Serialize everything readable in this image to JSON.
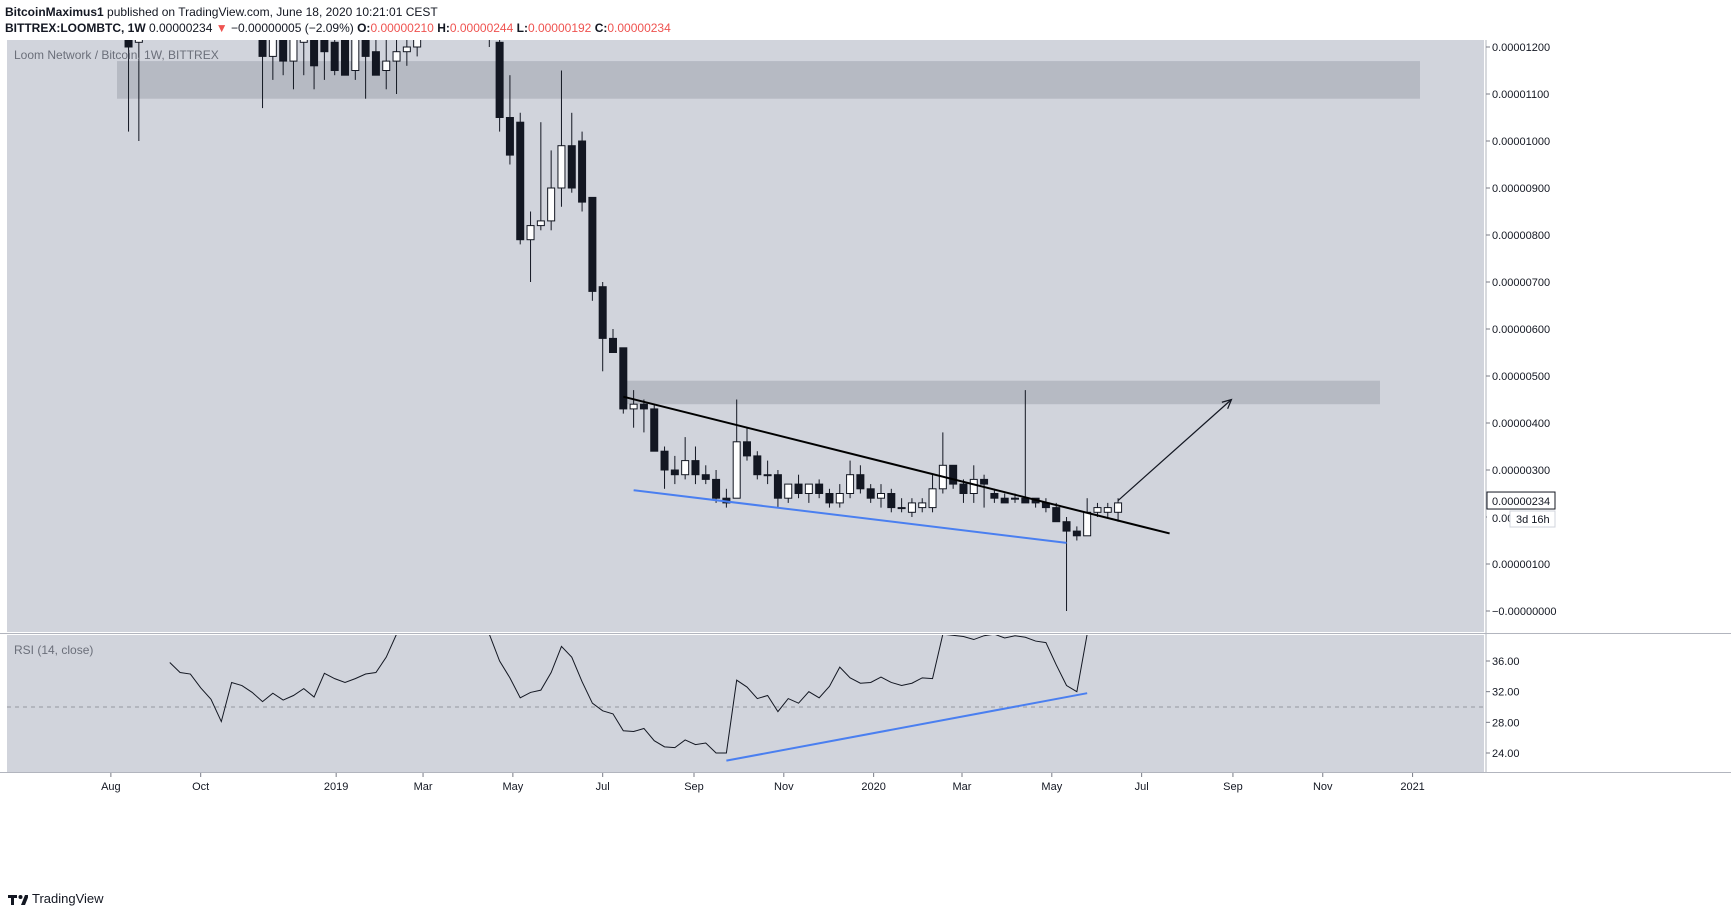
{
  "header": {
    "author": "BitcoinMaximus1",
    "published_text": "published on TradingView.com, June 18, 2020 10:21:01 CEST",
    "symbol": "BITTREX:LOOMBTC, 1W",
    "last_price": "0.00000234",
    "change_arrow": "▼",
    "change_text": "−0.00000005 (−2.09%)",
    "o_label": "O:",
    "o_value": "0.00000210",
    "h_label": "H:",
    "h_value": "0.00000244",
    "l_label": "L:",
    "l_value": "0.00000192",
    "c_label": "C:",
    "c_value": "0.00000234"
  },
  "footer": {
    "brand": "TradingView"
  },
  "colors": {
    "pane_bg": "#d1d4dc",
    "zone": "#b2b5be",
    "candle_down": "#131722",
    "candle_up": "#ffffff",
    "resistance_line": "#000000",
    "support_line": "#4a7ff0",
    "rsi_line": "#131722"
  },
  "chart_data": {
    "type": "candlestick",
    "title": "Loom Network / Bitcoin, 1W, BITTREX",
    "symbol": "LOOMBTC",
    "exchange": "BITTREX",
    "interval": "1W",
    "price_axis": {
      "ticks": [
        "0.00001200",
        "0.00001100",
        "0.00001000",
        "0.00000900",
        "0.00000800",
        "0.00000700",
        "0.00000600",
        "0.00000500",
        "0.00000400",
        "0.00000300",
        "0.00000200",
        "0.00000100",
        "−0.00000000"
      ],
      "min": -2e-07,
      "max": 1.22e-05,
      "last_price_label": "0.00000234",
      "countdown_label": "3d 16h",
      "partial_label": "0.00"
    },
    "time_axis": [
      "Aug",
      "Oct",
      "2019",
      "Mar",
      "May",
      "Jul",
      "Sep",
      "Nov",
      "2020",
      "Mar",
      "May",
      "Jul",
      "Sep",
      "Nov",
      "2021"
    ],
    "zones": [
      {
        "from": 1.09e-05,
        "to": 1.17e-05
      },
      {
        "from": 4.4e-06,
        "to": 4.9e-06
      }
    ],
    "annotations": {
      "resistance_line": {
        "from": [
          "2019-07-15",
          4.56e-06
        ],
        "to": [
          "2020-07-20",
          1.65e-06
        ]
      },
      "support_line": {
        "from": [
          "2019-07-22",
          2.57e-06
        ],
        "to": [
          "2020-05-11",
          1.45e-06
        ]
      },
      "target_arrow": {
        "from": [
          "2020-06-15",
          2.35e-06
        ],
        "to": [
          "2020-08-31",
          4.5e-06
        ]
      }
    },
    "candles": [
      {
        "x": "2018-08-13",
        "o": 1.22e-05,
        "h": 1.27e-05,
        "l": 1.02e-05,
        "c": 1.2e-05
      },
      {
        "x": "2018-08-20",
        "o": 1.21e-05,
        "h": 1.26e-05,
        "l": 1e-05,
        "c": 1.23e-05
      },
      {
        "x": "2018-11-12",
        "o": 1.22e-05,
        "h": 1.28e-05,
        "l": 1.07e-05,
        "c": 1.18e-05
      },
      {
        "x": "2018-11-19",
        "o": 1.18e-05,
        "h": 1.27e-05,
        "l": 1.13e-05,
        "c": 1.25e-05
      },
      {
        "x": "2018-11-26",
        "o": 1.24e-05,
        "h": 1.29e-05,
        "l": 1.14e-05,
        "c": 1.17e-05
      },
      {
        "x": "2018-12-03",
        "o": 1.17e-05,
        "h": 1.26e-05,
        "l": 1.11e-05,
        "c": 1.22e-05
      },
      {
        "x": "2018-12-10",
        "o": 1.21e-05,
        "h": 1.25e-05,
        "l": 1.14e-05,
        "c": 1.23e-05
      },
      {
        "x": "2018-12-17",
        "o": 1.23e-05,
        "h": 1.28e-05,
        "l": 1.11e-05,
        "c": 1.16e-05
      },
      {
        "x": "2018-12-24",
        "o": 1.24e-05,
        "h": 1.27e-05,
        "l": 1.13e-05,
        "c": 1.19e-05
      },
      {
        "x": "2018-12-31",
        "o": 1.21e-05,
        "h": 1.25e-05,
        "l": 1.14e-05,
        "c": 1.15e-05
      },
      {
        "x": "2019-01-07",
        "o": 1.22e-05,
        "h": 1.26e-05,
        "l": 1.15e-05,
        "c": 1.14e-05
      },
      {
        "x": "2019-01-14",
        "o": 1.15e-05,
        "h": 1.24e-05,
        "l": 1.13e-05,
        "c": 1.23e-05
      },
      {
        "x": "2019-01-21",
        "o": 1.23e-05,
        "h": 1.26e-05,
        "l": 1.09e-05,
        "c": 1.18e-05
      },
      {
        "x": "2019-01-28",
        "o": 1.19e-05,
        "h": 1.25e-05,
        "l": 1.14e-05,
        "c": 1.14e-05
      },
      {
        "x": "2019-02-04",
        "o": 1.15e-05,
        "h": 1.24e-05,
        "l": 1.11e-05,
        "c": 1.17e-05
      },
      {
        "x": "2019-02-11",
        "o": 1.17e-05,
        "h": 1.23e-05,
        "l": 1.1e-05,
        "c": 1.19e-05
      },
      {
        "x": "2019-02-18",
        "o": 1.19e-05,
        "h": 1.26e-05,
        "l": 1.16e-05,
        "c": 1.2e-05
      },
      {
        "x": "2019-02-25",
        "o": 1.2e-05,
        "h": 1.27e-05,
        "l": 1.18e-05,
        "c": 1.23e-05
      },
      {
        "x": "2019-04-15",
        "o": 1.24e-05,
        "h": 1.26e-05,
        "l": 1.2e-05,
        "c": 1.22e-05
      },
      {
        "x": "2019-04-22",
        "o": 1.21e-05,
        "h": 1.24e-05,
        "l": 1.02e-05,
        "c": 1.05e-05
      },
      {
        "x": "2019-04-29",
        "o": 1.05e-05,
        "h": 1.14e-05,
        "l": 9.5e-06,
        "c": 9.7e-06
      },
      {
        "x": "2019-05-06",
        "o": 1.04e-05,
        "h": 1.06e-05,
        "l": 7.8e-06,
        "c": 7.9e-06
      },
      {
        "x": "2019-05-13",
        "o": 7.9e-06,
        "h": 8.5e-06,
        "l": 7e-06,
        "c": 8.2e-06
      },
      {
        "x": "2019-05-20",
        "o": 8.2e-06,
        "h": 1.04e-05,
        "l": 8.1e-06,
        "c": 8.3e-06
      },
      {
        "x": "2019-05-27",
        "o": 8.3e-06,
        "h": 9.8e-06,
        "l": 8.1e-06,
        "c": 9e-06
      },
      {
        "x": "2019-06-03",
        "o": 9e-06,
        "h": 1.15e-05,
        "l": 8.6e-06,
        "c": 9.9e-06
      },
      {
        "x": "2019-06-10",
        "o": 9.9e-06,
        "h": 1.06e-05,
        "l": 8.9e-06,
        "c": 9e-06
      },
      {
        "x": "2019-06-17",
        "o": 1e-05,
        "h": 1.02e-05,
        "l": 8.5e-06,
        "c": 8.7e-06
      },
      {
        "x": "2019-06-24",
        "o": 8.8e-06,
        "h": 8.8e-06,
        "l": 6.6e-06,
        "c": 6.8e-06
      },
      {
        "x": "2019-07-01",
        "o": 6.9e-06,
        "h": 7e-06,
        "l": 5.1e-06,
        "c": 5.8e-06
      },
      {
        "x": "2019-07-08",
        "o": 5.8e-06,
        "h": 6e-06,
        "l": 5.5e-06,
        "c": 5.5e-06
      },
      {
        "x": "2019-07-15",
        "o": 5.6e-06,
        "h": 5.6e-06,
        "l": 4.2e-06,
        "c": 4.3e-06
      },
      {
        "x": "2019-07-22",
        "o": 4.3e-06,
        "h": 4.7e-06,
        "l": 3.9e-06,
        "c": 4.4e-06
      },
      {
        "x": "2019-07-29",
        "o": 4.4e-06,
        "h": 4.5e-06,
        "l": 3.8e-06,
        "c": 4.3e-06
      },
      {
        "x": "2019-08-05",
        "o": 4.3e-06,
        "h": 4.4e-06,
        "l": 3.4e-06,
        "c": 3.4e-06
      },
      {
        "x": "2019-08-12",
        "o": 3.4e-06,
        "h": 3.5e-06,
        "l": 2.6e-06,
        "c": 3e-06
      },
      {
        "x": "2019-08-19",
        "o": 3e-06,
        "h": 3.3e-06,
        "l": 2.7e-06,
        "c": 2.9e-06
      },
      {
        "x": "2019-08-26",
        "o": 2.9e-06,
        "h": 3.7e-06,
        "l": 2.8e-06,
        "c": 3.2e-06
      },
      {
        "x": "2019-09-02",
        "o": 3.2e-06,
        "h": 3.5e-06,
        "l": 2.7e-06,
        "c": 2.9e-06
      },
      {
        "x": "2019-09-09",
        "o": 2.9e-06,
        "h": 3.1e-06,
        "l": 2.7e-06,
        "c": 2.8e-06
      },
      {
        "x": "2019-09-16",
        "o": 2.8e-06,
        "h": 3e-06,
        "l": 2.3e-06,
        "c": 2.4e-06
      },
      {
        "x": "2019-09-23",
        "o": 2.4e-06,
        "h": 2.6e-06,
        "l": 2.2e-06,
        "c": 2.3e-06
      },
      {
        "x": "2019-09-30",
        "o": 2.4e-06,
        "h": 4.5e-06,
        "l": 2.4e-06,
        "c": 3.6e-06
      },
      {
        "x": "2019-10-07",
        "o": 3.6e-06,
        "h": 3.9e-06,
        "l": 3.2e-06,
        "c": 3.3e-06
      },
      {
        "x": "2019-10-14",
        "o": 3.3e-06,
        "h": 3.4e-06,
        "l": 2.8e-06,
        "c": 2.9e-06
      },
      {
        "x": "2019-10-21",
        "o": 2.9e-06,
        "h": 3.2e-06,
        "l": 2.7e-06,
        "c": 2.9e-06
      },
      {
        "x": "2019-10-28",
        "o": 2.9e-06,
        "h": 3e-06,
        "l": 2.2e-06,
        "c": 2.4e-06
      },
      {
        "x": "2019-11-04",
        "o": 2.4e-06,
        "h": 2.7e-06,
        "l": 2.3e-06,
        "c": 2.7e-06
      },
      {
        "x": "2019-11-11",
        "o": 2.7e-06,
        "h": 2.9e-06,
        "l": 2.4e-06,
        "c": 2.5e-06
      },
      {
        "x": "2019-11-18",
        "o": 2.5e-06,
        "h": 2.7e-06,
        "l": 2.3e-06,
        "c": 2.7e-06
      },
      {
        "x": "2019-11-25",
        "o": 2.7e-06,
        "h": 2.8e-06,
        "l": 2.4e-06,
        "c": 2.5e-06
      },
      {
        "x": "2019-12-02",
        "o": 2.5e-06,
        "h": 2.6e-06,
        "l": 2.2e-06,
        "c": 2.3e-06
      },
      {
        "x": "2019-12-09",
        "o": 2.3e-06,
        "h": 2.7e-06,
        "l": 2.2e-06,
        "c": 2.5e-06
      },
      {
        "x": "2019-12-16",
        "o": 2.5e-06,
        "h": 3.2e-06,
        "l": 2.4e-06,
        "c": 2.9e-06
      },
      {
        "x": "2019-12-23",
        "o": 2.9e-06,
        "h": 3.1e-06,
        "l": 2.5e-06,
        "c": 2.6e-06
      },
      {
        "x": "2019-12-30",
        "o": 2.6e-06,
        "h": 2.7e-06,
        "l": 2.3e-06,
        "c": 2.4e-06
      },
      {
        "x": "2020-01-06",
        "o": 2.4e-06,
        "h": 2.7e-06,
        "l": 2.2e-06,
        "c": 2.5e-06
      },
      {
        "x": "2020-01-13",
        "o": 2.5e-06,
        "h": 2.6e-06,
        "l": 2.1e-06,
        "c": 2.2e-06
      },
      {
        "x": "2020-01-20",
        "o": 2.2e-06,
        "h": 2.4e-06,
        "l": 2.1e-06,
        "c": 2.2e-06
      },
      {
        "x": "2020-01-27",
        "o": 2.1e-06,
        "h": 2.4e-06,
        "l": 2e-06,
        "c": 2.3e-06
      },
      {
        "x": "2020-02-03",
        "o": 2.2e-06,
        "h": 2.4e-06,
        "l": 2.1e-06,
        "c": 2.3e-06
      },
      {
        "x": "2020-02-10",
        "o": 2.2e-06,
        "h": 2.9e-06,
        "l": 2.1e-06,
        "c": 2.6e-06
      },
      {
        "x": "2020-02-17",
        "o": 2.6e-06,
        "h": 3.8e-06,
        "l": 2.5e-06,
        "c": 3.1e-06
      },
      {
        "x": "2020-02-24",
        "o": 3.1e-06,
        "h": 3.1e-06,
        "l": 2.6e-06,
        "c": 2.7e-06
      },
      {
        "x": "2020-03-02",
        "o": 2.7e-06,
        "h": 2.8e-06,
        "l": 2.3e-06,
        "c": 2.5e-06
      },
      {
        "x": "2020-03-09",
        "o": 2.5e-06,
        "h": 3.1e-06,
        "l": 2.3e-06,
        "c": 2.8e-06
      },
      {
        "x": "2020-03-16",
        "o": 2.8e-06,
        "h": 2.9e-06,
        "l": 2.2e-06,
        "c": 2.7e-06
      },
      {
        "x": "2020-03-23",
        "o": 2.5e-06,
        "h": 2.6e-06,
        "l": 2.3e-06,
        "c": 2.4e-06
      },
      {
        "x": "2020-03-30",
        "o": 2.4e-06,
        "h": 2.5e-06,
        "l": 2.3e-06,
        "c": 2.3e-06
      },
      {
        "x": "2020-04-06",
        "o": 2.4e-06,
        "h": 2.5e-06,
        "l": 2.3e-06,
        "c": 2.4e-06
      },
      {
        "x": "2020-04-13",
        "o": 2.4e-06,
        "h": 4.7e-06,
        "l": 2.3e-06,
        "c": 2.3e-06
      },
      {
        "x": "2020-04-20",
        "o": 2.4e-06,
        "h": 2.4e-06,
        "l": 2.2e-06,
        "c": 2.3e-06
      },
      {
        "x": "2020-04-27",
        "o": 2.3e-06,
        "h": 2.4e-06,
        "l": 2.1e-06,
        "c": 2.2e-06
      },
      {
        "x": "2020-05-04",
        "o": 2.2e-06,
        "h": 2.3e-06,
        "l": 1.9e-06,
        "c": 1.9e-06
      },
      {
        "x": "2020-05-11",
        "o": 1.9e-06,
        "h": 2e-06,
        "l": 0.0,
        "c": 1.7e-06
      },
      {
        "x": "2020-05-18",
        "o": 1.7e-06,
        "h": 1.8e-06,
        "l": 1.5e-06,
        "c": 1.6e-06
      },
      {
        "x": "2020-05-25",
        "o": 1.6e-06,
        "h": 2.4e-06,
        "l": 1.6e-06,
        "c": 2.1e-06
      },
      {
        "x": "2020-06-01",
        "o": 2.1e-06,
        "h": 2.3e-06,
        "l": 2e-06,
        "c": 2.2e-06
      },
      {
        "x": "2020-06-08",
        "o": 2.1e-06,
        "h": 2.3e-06,
        "l": 2e-06,
        "c": 2.2e-06
      },
      {
        "x": "2020-06-15",
        "o": 2.1e-06,
        "h": 2.4e-06,
        "l": 1.9e-06,
        "c": 2.3e-06
      }
    ],
    "rsi": {
      "label": "RSI (14, close)",
      "axis_ticks": [
        "36.00",
        "32.00",
        "28.00",
        "24.00"
      ],
      "min": 22,
      "max": 39.5,
      "dashed_level": 30,
      "divergence_line": {
        "from": [
          "2019-09-23",
          23
        ],
        "to": [
          "2020-05-25",
          31.8
        ]
      },
      "values": [
        {
          "x": "2018-09-10",
          "v": 35.8
        },
        {
          "x": "2018-09-17",
          "v": 34.5
        },
        {
          "x": "2018-09-24",
          "v": 34.3
        },
        {
          "x": "2018-10-01",
          "v": 32.5
        },
        {
          "x": "2018-10-08",
          "v": 31.0
        },
        {
          "x": "2018-10-15",
          "v": 28.1
        },
        {
          "x": "2018-10-22",
          "v": 33.2
        },
        {
          "x": "2018-10-29",
          "v": 32.8
        },
        {
          "x": "2018-11-05",
          "v": 31.9
        },
        {
          "x": "2018-11-12",
          "v": 30.7
        },
        {
          "x": "2018-11-19",
          "v": 31.8
        },
        {
          "x": "2018-11-26",
          "v": 30.9
        },
        {
          "x": "2018-12-03",
          "v": 31.5
        },
        {
          "x": "2018-12-10",
          "v": 32.4
        },
        {
          "x": "2018-12-17",
          "v": 31.3
        },
        {
          "x": "2018-12-24",
          "v": 34.4
        },
        {
          "x": "2018-12-31",
          "v": 33.7
        },
        {
          "x": "2019-01-07",
          "v": 33.2
        },
        {
          "x": "2019-01-14",
          "v": 33.7
        },
        {
          "x": "2019-01-21",
          "v": 34.3
        },
        {
          "x": "2019-01-28",
          "v": 34.5
        },
        {
          "x": "2019-02-04",
          "v": 36.5
        },
        {
          "x": "2019-02-11",
          "v": 39.5
        },
        {
          "x": "2019-04-15",
          "v": 39.5
        },
        {
          "x": "2019-04-22",
          "v": 36.0
        },
        {
          "x": "2019-04-29",
          "v": 33.8
        },
        {
          "x": "2019-05-06",
          "v": 31.2
        },
        {
          "x": "2019-05-13",
          "v": 31.9
        },
        {
          "x": "2019-05-20",
          "v": 32.2
        },
        {
          "x": "2019-05-27",
          "v": 34.5
        },
        {
          "x": "2019-06-03",
          "v": 37.9
        },
        {
          "x": "2019-06-10",
          "v": 36.5
        },
        {
          "x": "2019-06-17",
          "v": 33.3
        },
        {
          "x": "2019-06-24",
          "v": 30.5
        },
        {
          "x": "2019-07-01",
          "v": 29.5
        },
        {
          "x": "2019-07-08",
          "v": 29.1
        },
        {
          "x": "2019-07-15",
          "v": 26.9
        },
        {
          "x": "2019-07-22",
          "v": 26.8
        },
        {
          "x": "2019-07-29",
          "v": 27.2
        },
        {
          "x": "2019-08-05",
          "v": 25.6
        },
        {
          "x": "2019-08-12",
          "v": 24.8
        },
        {
          "x": "2019-08-19",
          "v": 24.7
        },
        {
          "x": "2019-08-26",
          "v": 25.7
        },
        {
          "x": "2019-09-02",
          "v": 25.1
        },
        {
          "x": "2019-09-09",
          "v": 25.3
        },
        {
          "x": "2019-09-16",
          "v": 24.0
        },
        {
          "x": "2019-09-23",
          "v": 24.0
        },
        {
          "x": "2019-09-30",
          "v": 33.5
        },
        {
          "x": "2019-10-07",
          "v": 32.6
        },
        {
          "x": "2019-10-14",
          "v": 31.1
        },
        {
          "x": "2019-10-21",
          "v": 31.5
        },
        {
          "x": "2019-10-28",
          "v": 29.4
        },
        {
          "x": "2019-11-04",
          "v": 31.1
        },
        {
          "x": "2019-11-11",
          "v": 30.5
        },
        {
          "x": "2019-11-18",
          "v": 32.0
        },
        {
          "x": "2019-11-25",
          "v": 31.2
        },
        {
          "x": "2019-12-02",
          "v": 32.7
        },
        {
          "x": "2019-12-09",
          "v": 35.2
        },
        {
          "x": "2019-12-16",
          "v": 33.8
        },
        {
          "x": "2019-12-23",
          "v": 33.1
        },
        {
          "x": "2019-12-30",
          "v": 33.2
        },
        {
          "x": "2020-01-06",
          "v": 33.9
        },
        {
          "x": "2020-01-13",
          "v": 33.2
        },
        {
          "x": "2020-01-20",
          "v": 32.8
        },
        {
          "x": "2020-01-27",
          "v": 33.1
        },
        {
          "x": "2020-02-03",
          "v": 33.8
        },
        {
          "x": "2020-02-10",
          "v": 33.7
        },
        {
          "x": "2020-02-17",
          "v": 39.5
        },
        {
          "x": "2020-03-02",
          "v": 39.2
        },
        {
          "x": "2020-03-09",
          "v": 38.8
        },
        {
          "x": "2020-03-16",
          "v": 39.3
        },
        {
          "x": "2020-03-23",
          "v": 39.5
        },
        {
          "x": "2020-03-30",
          "v": 39.0
        },
        {
          "x": "2020-04-06",
          "v": 39.3
        },
        {
          "x": "2020-04-13",
          "v": 39.1
        },
        {
          "x": "2020-04-20",
          "v": 38.6
        },
        {
          "x": "2020-04-27",
          "v": 38.4
        },
        {
          "x": "2020-05-04",
          "v": 35.5
        },
        {
          "x": "2020-05-11",
          "v": 32.8
        },
        {
          "x": "2020-05-18",
          "v": 32.0
        },
        {
          "x": "2020-05-25",
          "v": 39.5
        }
      ]
    }
  }
}
